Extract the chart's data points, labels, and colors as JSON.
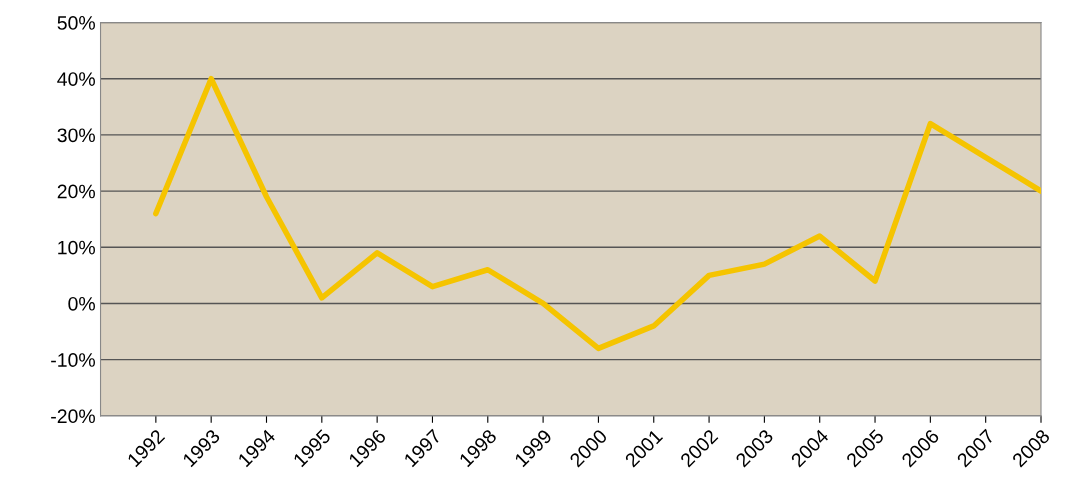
{
  "chart_data": {
    "type": "line",
    "categories": [
      "1992",
      "1993",
      "1994",
      "1995",
      "1996",
      "1997",
      "1998",
      "1999",
      "2000",
      "2001",
      "2002",
      "2003",
      "2004",
      "2005",
      "2006",
      "2007",
      "2008"
    ],
    "series": [
      {
        "color": "#f5c400",
        "values": [
          16,
          40,
          19,
          1,
          9,
          3,
          6,
          0,
          -8,
          -4,
          5,
          7,
          12,
          4,
          32,
          26,
          20
        ]
      }
    ],
    "ylim": [
      -20,
      50
    ],
    "yticks": [
      {
        "value": -20,
        "label": "-20%"
      },
      {
        "value": -10,
        "label": "-10%"
      },
      {
        "value": 0,
        "label": "0%"
      },
      {
        "value": 10,
        "label": "10%"
      },
      {
        "value": 20,
        "label": "20%"
      },
      {
        "value": 30,
        "label": "30%"
      },
      {
        "value": 40,
        "label": "40%"
      },
      {
        "value": 50,
        "label": "50%"
      }
    ],
    "grid": "y",
    "marker": "none",
    "line_style": "solid",
    "legend": false
  }
}
